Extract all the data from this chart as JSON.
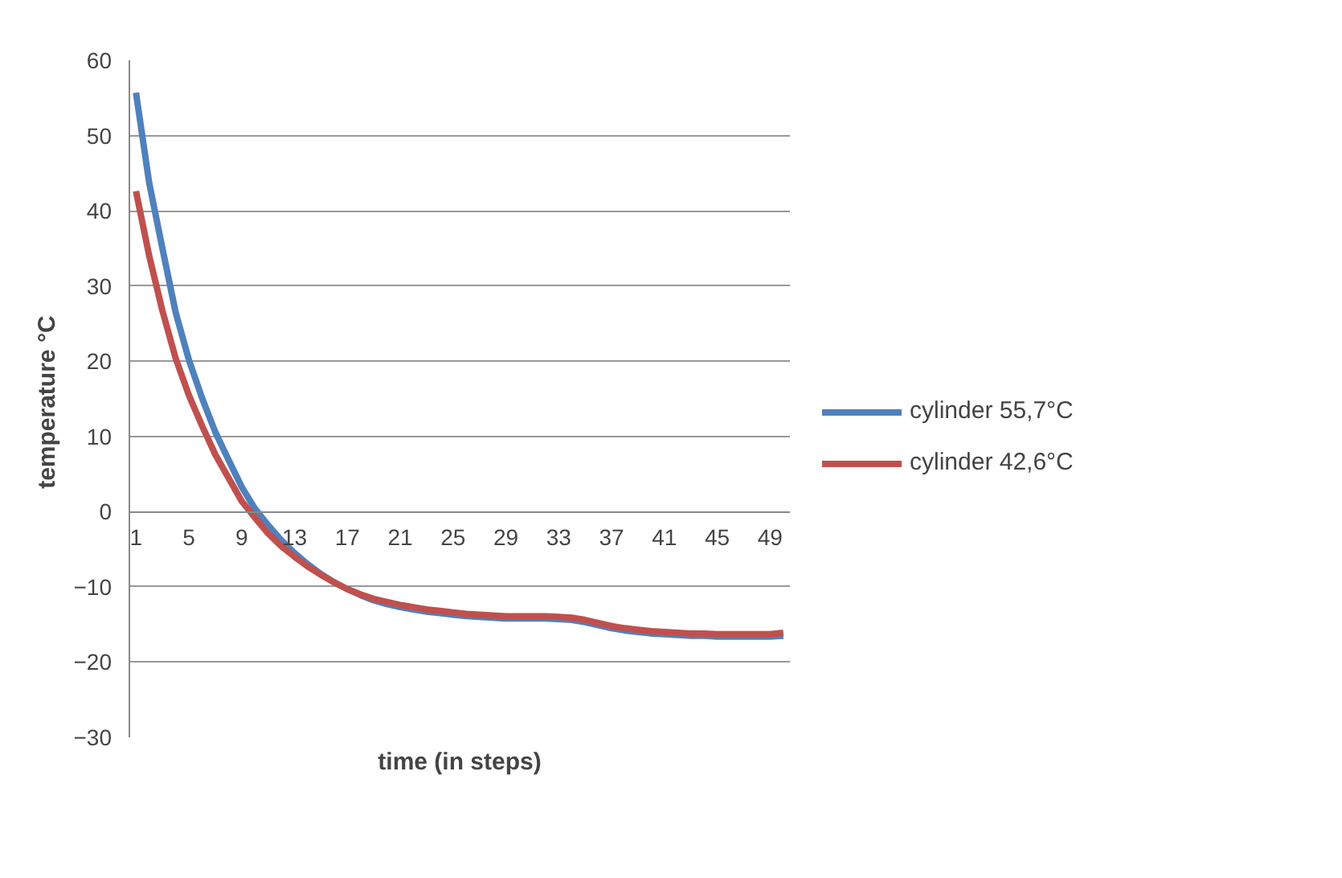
{
  "chart_data": {
    "type": "line",
    "xlabel": "time (in steps)",
    "ylabel": "temperature  °C",
    "categories": [
      "1",
      null,
      null,
      null,
      "5",
      null,
      null,
      null,
      "9",
      null,
      null,
      null,
      "13",
      null,
      null,
      null,
      "17",
      null,
      null,
      null,
      "21",
      null,
      null,
      null,
      "25",
      null,
      null,
      null,
      "29",
      null,
      null,
      null,
      "33",
      null,
      null,
      null,
      "37",
      null,
      null,
      null,
      "41",
      null,
      null,
      null,
      "45",
      null,
      null,
      null,
      "49",
      null
    ],
    "series": [
      {
        "name": "cylinder 55,7°C",
        "color": "#4f81bd",
        "values": [
          55.7,
          43.7,
          35,
          26.5,
          20.2,
          15.1,
          10.6,
          6.9,
          3.3,
          0.4,
          -1.8,
          -3.8,
          -5.5,
          -7,
          -8.3,
          -9.4,
          -10.3,
          -11.1,
          -11.8,
          -12.3,
          -12.7,
          -13,
          -13.3,
          -13.5,
          -13.7,
          -13.9,
          -14,
          -14.1,
          -14.2,
          -14.2,
          -14.2,
          -14.2,
          -14.3,
          -14.4,
          -14.7,
          -15.1,
          -15.5,
          -15.8,
          -16,
          -16.2,
          -16.3,
          -16.4,
          -16.5,
          -16.5,
          -16.6,
          -16.6,
          -16.6,
          -16.6,
          -16.6,
          -16.5
        ]
      },
      {
        "name": "cylinder 42,6°C",
        "color": "#c0504d",
        "values": [
          42.6,
          34,
          26.7,
          20.4,
          15.5,
          11.4,
          7.6,
          4.5,
          1.4,
          -0.8,
          -2.9,
          -4.6,
          -6,
          -7.3,
          -8.4,
          -9.4,
          -10.3,
          -11,
          -11.6,
          -12,
          -12.4,
          -12.7,
          -13,
          -13.2,
          -13.4,
          -13.6,
          -13.7,
          -13.8,
          -13.9,
          -13.9,
          -13.9,
          -13.9,
          -14,
          -14.1,
          -14.4,
          -14.8,
          -15.2,
          -15.5,
          -15.7,
          -15.9,
          -16,
          -16.1,
          -16.2,
          -16.2,
          -16.3,
          -16.3,
          -16.3,
          -16.3,
          -16.3,
          -16.1
        ]
      }
    ],
    "ylim": [
      -30,
      60
    ],
    "yticks": [
      -30,
      -20,
      -10,
      0,
      10,
      20,
      30,
      40,
      50,
      60
    ],
    "grid": "y",
    "legend": "right",
    "marker": "none",
    "line_style": "solid"
  }
}
